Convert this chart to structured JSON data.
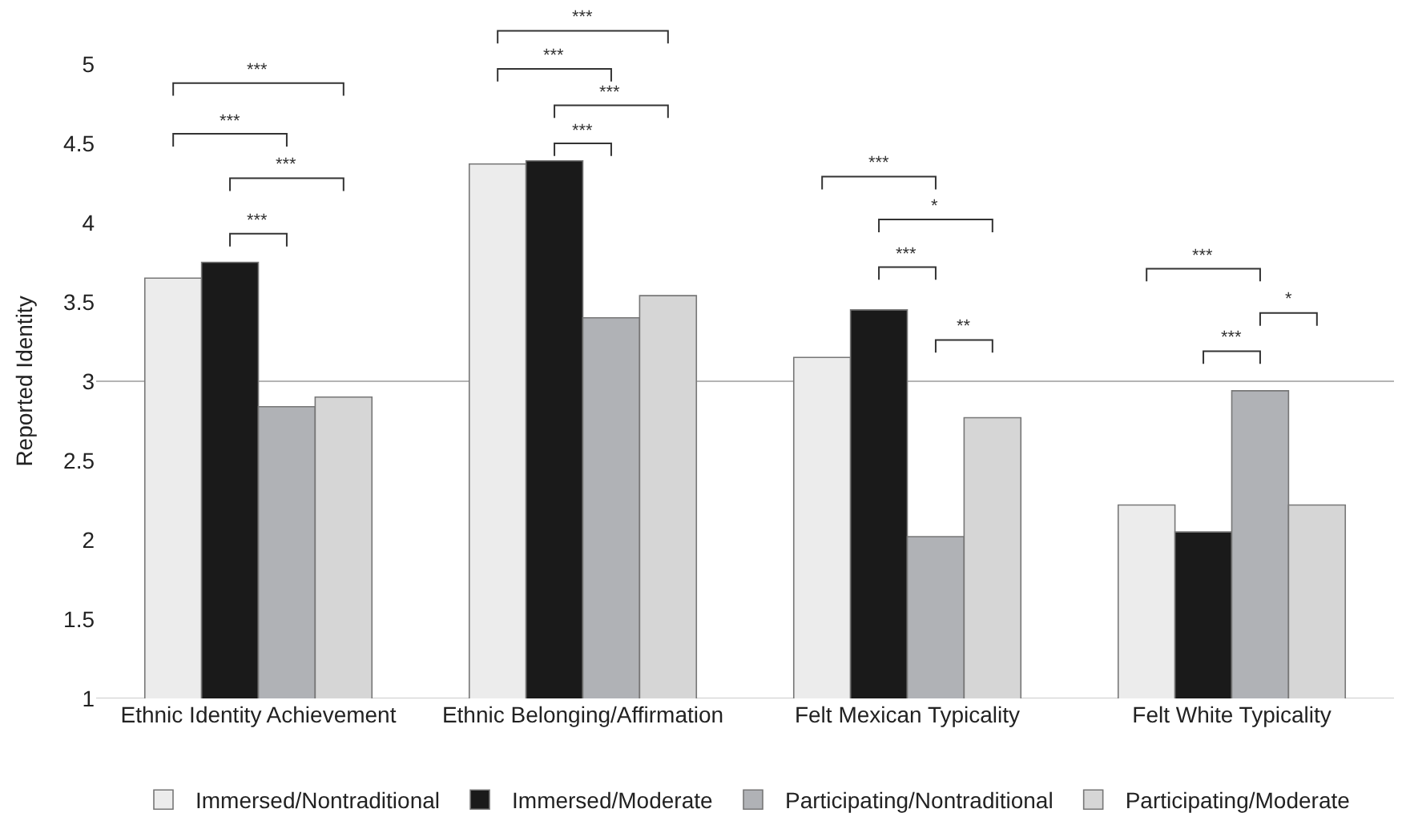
{
  "chart_data": {
    "type": "bar",
    "ylabel": "Reported Identity",
    "categories": [
      "Ethnic Identity Achievement",
      "Ethnic Belonging/Affirmation",
      "Felt Mexican Typicality",
      "Felt White Typicality"
    ],
    "series": [
      {
        "name": "Immersed/Nontraditional",
        "color": "#ececec",
        "values": [
          3.65,
          4.37,
          3.15,
          2.22
        ]
      },
      {
        "name": "Immersed/Moderate",
        "color": "#1a1a1a",
        "values": [
          3.75,
          4.39,
          3.45,
          2.05
        ]
      },
      {
        "name": "Participating/Nontraditional",
        "color": "#b0b2b6",
        "values": [
          2.84,
          3.4,
          2.02,
          2.94
        ]
      },
      {
        "name": "Participating/Moderate",
        "color": "#d6d6d6",
        "values": [
          2.9,
          3.54,
          2.77,
          2.22
        ]
      }
    ],
    "ylim": [
      1,
      5
    ],
    "yticks": [
      1,
      1.5,
      2,
      2.5,
      3,
      3.5,
      4,
      4.5,
      5
    ],
    "grid": false,
    "legend": "bottom",
    "ref_lines": [
      {
        "axis": "y",
        "value": 3,
        "color": "#b4b4b4"
      }
    ],
    "annotations": [
      "***",
      "***",
      "***",
      "***",
      "***",
      "***",
      "***",
      "***",
      "***",
      "*",
      "***",
      "**",
      "***",
      "*",
      "***"
    ]
  }
}
